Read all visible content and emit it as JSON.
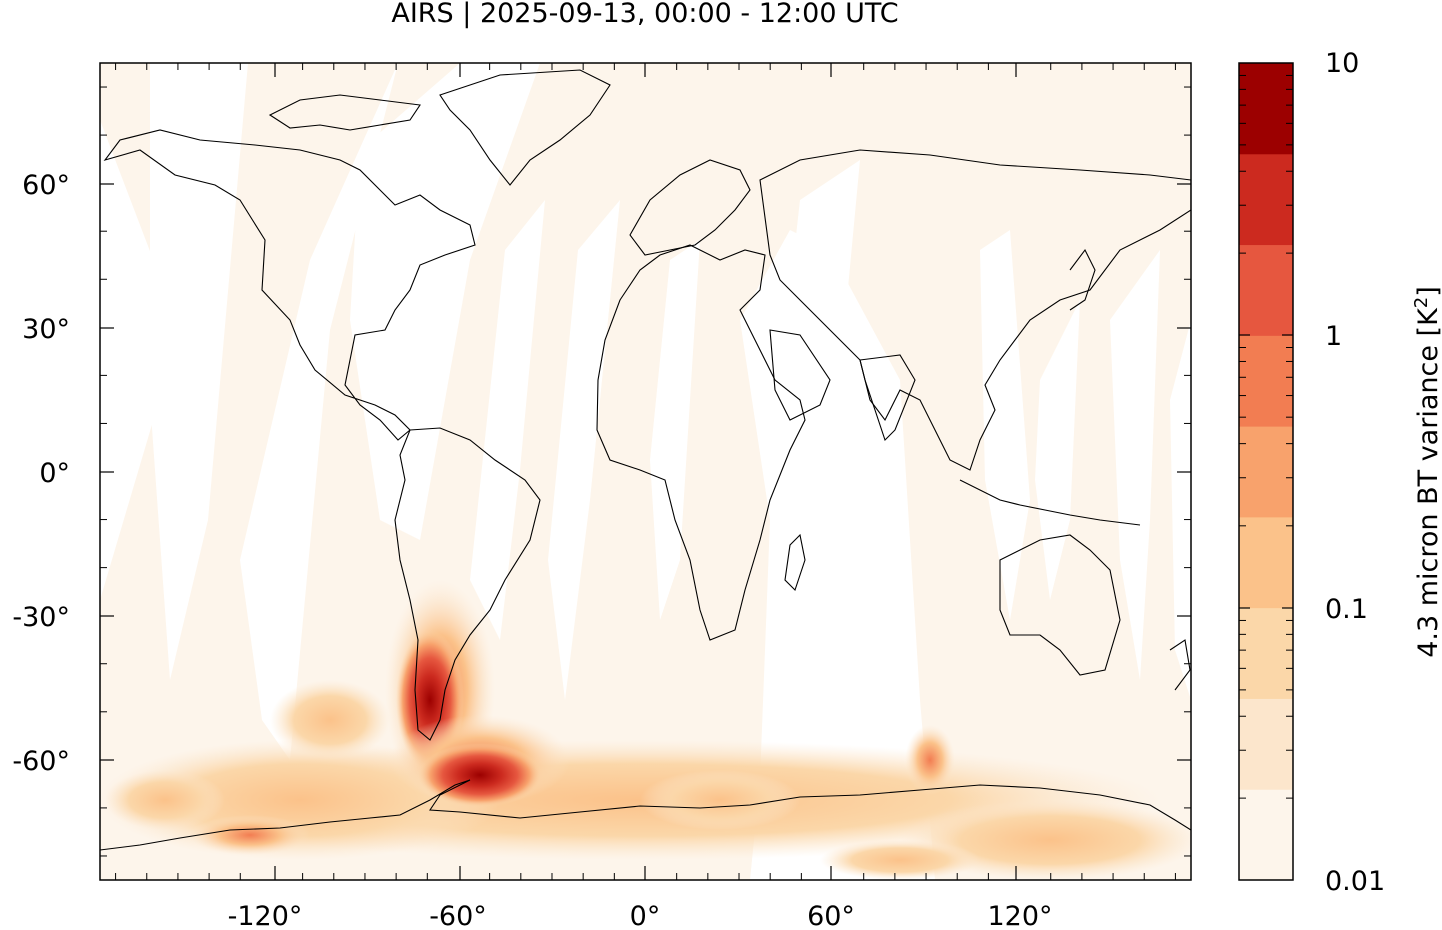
{
  "title": "AIRS | 2025-09-13, 00:00 - 12:00 UTC",
  "map": {
    "projection": "equirectangular",
    "lon_range": [
      -175,
      175
    ],
    "lat_range": [
      -85,
      85
    ],
    "lon_tick_labels": [
      "-120°",
      "-60°",
      "0°",
      "60°",
      "120°"
    ],
    "lat_tick_labels": [
      "60°",
      "30°",
      "0°",
      "-30°",
      "-60°"
    ],
    "background_color": "#fdf5eb",
    "no_data_color": "#ffffff",
    "coastline_color": "#000000"
  },
  "colorbar": {
    "label_prefix": "4.3 micron BT variance [K",
    "label_sup": "2",
    "label_suffix": "]",
    "scale": "log",
    "range": [
      0.01,
      10
    ],
    "tick_labels": [
      "10",
      "1",
      "0.1",
      "0.01"
    ],
    "colors": [
      "#fdf5eb",
      "#fce6cc",
      "#fbd7a9",
      "#fbc28a",
      "#f8a26c",
      "#f27d52",
      "#e6573f",
      "#cc2a1f",
      "#9c0000"
    ]
  }
}
